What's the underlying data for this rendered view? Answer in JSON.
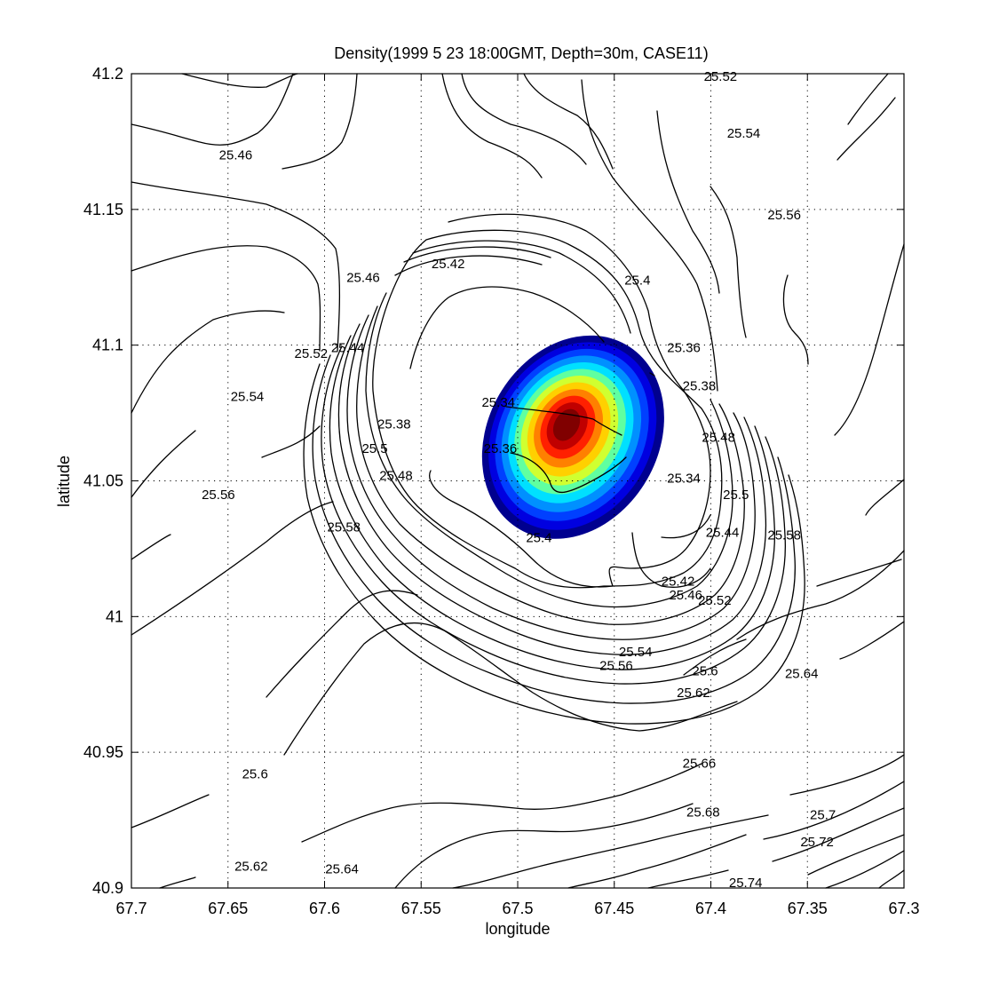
{
  "chart_data": {
    "type": "contour",
    "title": "Density(1999   5   23 18:00GMT, Depth=30m, CASE11)",
    "xlabel": "longitude",
    "ylabel": "latitude",
    "xlim": [
      67.7,
      67.3
    ],
    "ylim": [
      40.9,
      41.2
    ],
    "x_reversed": true,
    "grid": true,
    "grid_style": "dotted",
    "xticks": [
      67.7,
      67.65,
      67.6,
      67.55,
      67.5,
      67.45,
      67.4,
      67.35,
      67.3
    ],
    "xtick_labels": [
      "67.7",
      "67.65",
      "67.6",
      "67.55",
      "67.5",
      "67.45",
      "67.4",
      "67.35",
      "67.3"
    ],
    "yticks": [
      40.9,
      40.95,
      41.0,
      41.05,
      41.1,
      41.15,
      41.2
    ],
    "ytick_labels": [
      "40.9",
      "40.95",
      "41",
      "41.05",
      "41.1",
      "41.15",
      "41.2"
    ],
    "contour_labels": [
      {
        "text": "25.52",
        "lon": 67.395,
        "lat": 41.199
      },
      {
        "text": "25.54",
        "lon": 67.383,
        "lat": 41.178
      },
      {
        "text": "25.46",
        "lon": 67.646,
        "lat": 41.17
      },
      {
        "text": "25.56",
        "lon": 67.362,
        "lat": 41.148
      },
      {
        "text": "25.42",
        "lon": 67.536,
        "lat": 41.13
      },
      {
        "text": "25.46",
        "lon": 67.58,
        "lat": 41.125
      },
      {
        "text": "25.4",
        "lon": 67.438,
        "lat": 41.124
      },
      {
        "text": "25.36",
        "lon": 67.414,
        "lat": 41.099
      },
      {
        "text": "25.52",
        "lon": 67.607,
        "lat": 41.097
      },
      {
        "text": "25.44",
        "lon": 67.588,
        "lat": 41.099
      },
      {
        "text": "25.54",
        "lon": 67.64,
        "lat": 41.081
      },
      {
        "text": "25.38",
        "lon": 67.406,
        "lat": 41.085
      },
      {
        "text": "25.34",
        "lon": 67.51,
        "lat": 41.079
      },
      {
        "text": "25.38",
        "lon": 67.564,
        "lat": 41.071
      },
      {
        "text": "25.48",
        "lon": 67.396,
        "lat": 41.066
      },
      {
        "text": "25.5",
        "lon": 67.574,
        "lat": 41.062
      },
      {
        "text": "25.36",
        "lon": 67.509,
        "lat": 41.062
      },
      {
        "text": "25.48",
        "lon": 67.563,
        "lat": 41.052
      },
      {
        "text": "25.34",
        "lon": 67.414,
        "lat": 41.051
      },
      {
        "text": "25.56",
        "lon": 67.655,
        "lat": 41.045
      },
      {
        "text": "25.5",
        "lon": 67.387,
        "lat": 41.045
      },
      {
        "text": "25.58",
        "lon": 67.59,
        "lat": 41.033
      },
      {
        "text": "25.44",
        "lon": 67.394,
        "lat": 41.031
      },
      {
        "text": "25.58",
        "lon": 67.362,
        "lat": 41.03
      },
      {
        "text": "25.4",
        "lon": 67.489,
        "lat": 41.029
      },
      {
        "text": "25.42",
        "lon": 67.417,
        "lat": 41.013
      },
      {
        "text": "25.46",
        "lon": 67.413,
        "lat": 41.008
      },
      {
        "text": "25.52",
        "lon": 67.398,
        "lat": 41.006
      },
      {
        "text": "25.54",
        "lon": 67.439,
        "lat": 40.987
      },
      {
        "text": "25.56",
        "lon": 67.449,
        "lat": 40.982
      },
      {
        "text": "25.6",
        "lon": 67.403,
        "lat": 40.98
      },
      {
        "text": "25.64",
        "lon": 67.353,
        "lat": 40.979
      },
      {
        "text": "25.62",
        "lon": 67.409,
        "lat": 40.972
      },
      {
        "text": "25.66",
        "lon": 67.406,
        "lat": 40.946
      },
      {
        "text": "25.6",
        "lon": 67.636,
        "lat": 40.942
      },
      {
        "text": "25.68",
        "lon": 67.404,
        "lat": 40.928
      },
      {
        "text": "25.7",
        "lon": 67.342,
        "lat": 40.927
      },
      {
        "text": "25.72",
        "lon": 67.345,
        "lat": 40.917
      },
      {
        "text": "25.62",
        "lon": 67.638,
        "lat": 40.908
      },
      {
        "text": "25.64",
        "lon": 67.591,
        "lat": 40.907
      },
      {
        "text": "25.74",
        "lon": 67.382,
        "lat": 40.902
      }
    ],
    "filled_blob": {
      "center_lon": 67.475,
      "center_lat": 41.071,
      "colormap": [
        "#00008f",
        "#0000e0",
        "#0040ff",
        "#0090ff",
        "#00e0ff",
        "#60ffa0",
        "#d0ff30",
        "#ffd000",
        "#ff8000",
        "#ff2000",
        "#c00000",
        "#800000"
      ]
    }
  }
}
